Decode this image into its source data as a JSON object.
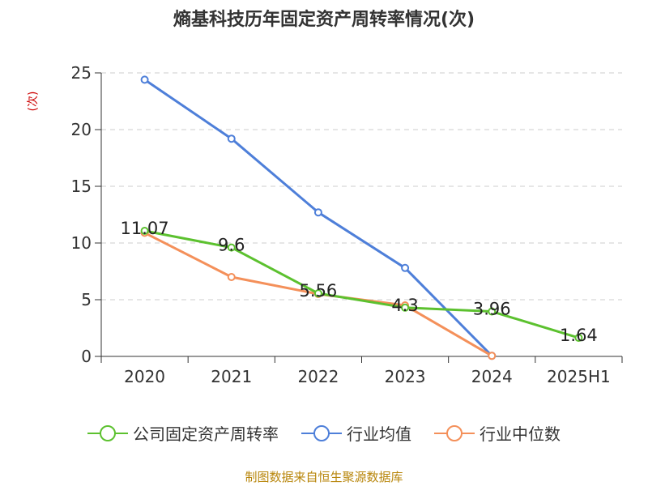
{
  "title": "熵基科技历年固定资产周转率情况(次)",
  "source": "制图数据来自恒生聚源数据库",
  "chart_data": {
    "type": "line",
    "title": "熵基科技历年固定资产周转率情况(次)",
    "ylabel": "(次)",
    "xlabel": "",
    "categories": [
      "2020",
      "2021",
      "2022",
      "2023",
      "2024",
      "2025H1"
    ],
    "ylim": [
      0,
      25
    ],
    "yticks": [
      0,
      5,
      10,
      15,
      20,
      25
    ],
    "grid": true,
    "legend_position": "bottom",
    "series": [
      {
        "name": "公司固定资产周转率",
        "color": "#5cc12f",
        "values": [
          11.07,
          9.6,
          5.56,
          4.3,
          3.96,
          1.64
        ],
        "labels": [
          "11.07",
          "9.6",
          "5.56",
          "4.3",
          "3.96",
          "1.64"
        ]
      },
      {
        "name": "行业均值",
        "color": "#4e7fd9",
        "values": [
          24.4,
          19.2,
          12.7,
          7.8,
          0.05,
          null
        ]
      },
      {
        "name": "行业中位数",
        "color": "#f4905a",
        "values": [
          10.9,
          7.0,
          5.5,
          4.5,
          0.05,
          null
        ]
      }
    ]
  }
}
